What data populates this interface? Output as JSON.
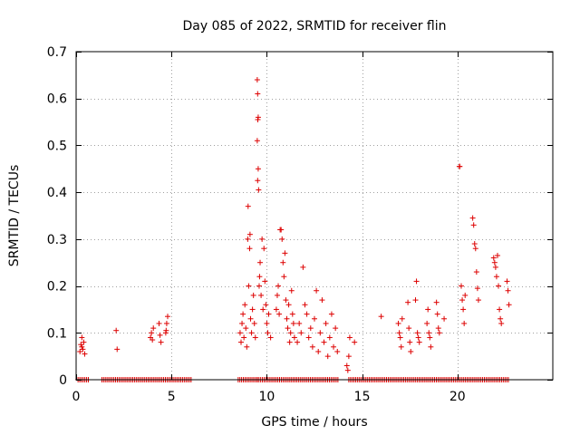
{
  "chart_data": {
    "type": "scatter",
    "title": "Day 085 of 2022, SRMTID for receiver flin",
    "xlabel": "GPS time / hours",
    "ylabel": "SRMTID / TECUs",
    "xlim": [
      0,
      25
    ],
    "ylim": [
      0,
      0.7
    ],
    "xticks": [
      0,
      5,
      10,
      15,
      20
    ],
    "yticks": [
      0,
      0.1,
      0.2,
      0.3,
      0.4,
      0.5,
      0.6,
      0.7
    ],
    "grid": true,
    "marker": "plus",
    "color": "#dd0000",
    "series": [
      {
        "name": "SRMTID",
        "points": [
          [
            0.2,
            0.06
          ],
          [
            0.25,
            0.075
          ],
          [
            0.3,
            0.09
          ],
          [
            0.35,
            0.065
          ],
          [
            0.4,
            0.08
          ],
          [
            0.45,
            0.055
          ],
          [
            0.3,
            0.07
          ],
          [
            2.1,
            0.105
          ],
          [
            2.15,
            0.065
          ],
          [
            3.9,
            0.09
          ],
          [
            3.95,
            0.1
          ],
          [
            4.0,
            0.085
          ],
          [
            4.05,
            0.11
          ],
          [
            4.35,
            0.12
          ],
          [
            4.4,
            0.095
          ],
          [
            4.45,
            0.08
          ],
          [
            4.7,
            0.1
          ],
          [
            4.75,
            0.12
          ],
          [
            4.8,
            0.135
          ],
          [
            4.72,
            0.105
          ],
          [
            8.6,
            0.1
          ],
          [
            8.65,
            0.08
          ],
          [
            8.7,
            0.12
          ],
          [
            8.75,
            0.14
          ],
          [
            8.8,
            0.09
          ],
          [
            8.85,
            0.16
          ],
          [
            8.9,
            0.11
          ],
          [
            8.95,
            0.07
          ],
          [
            9.0,
            0.3
          ],
          [
            9.02,
            0.37
          ],
          [
            9.05,
            0.2
          ],
          [
            9.1,
            0.28
          ],
          [
            9.12,
            0.31
          ],
          [
            9.15,
            0.13
          ],
          [
            9.2,
            0.1
          ],
          [
            9.25,
            0.15
          ],
          [
            9.3,
            0.18
          ],
          [
            9.35,
            0.12
          ],
          [
            9.4,
            0.09
          ],
          [
            9.5,
            0.64
          ],
          [
            9.52,
            0.61
          ],
          [
            9.55,
            0.56
          ],
          [
            9.53,
            0.555
          ],
          [
            9.5,
            0.51
          ],
          [
            9.55,
            0.45
          ],
          [
            9.52,
            0.425
          ],
          [
            9.57,
            0.405
          ],
          [
            9.6,
            0.2
          ],
          [
            9.62,
            0.22
          ],
          [
            9.65,
            0.25
          ],
          [
            9.7,
            0.18
          ],
          [
            9.75,
            0.3
          ],
          [
            9.8,
            0.15
          ],
          [
            9.85,
            0.28
          ],
          [
            9.9,
            0.21
          ],
          [
            9.95,
            0.16
          ],
          [
            10.0,
            0.12
          ],
          [
            10.05,
            0.1
          ],
          [
            10.1,
            0.14
          ],
          [
            10.2,
            0.09
          ],
          [
            10.5,
            0.15
          ],
          [
            10.55,
            0.18
          ],
          [
            10.6,
            0.2
          ],
          [
            10.65,
            0.14
          ],
          [
            10.7,
            0.32
          ],
          [
            10.75,
            0.32
          ],
          [
            10.8,
            0.3
          ],
          [
            10.85,
            0.25
          ],
          [
            10.9,
            0.22
          ],
          [
            10.95,
            0.27
          ],
          [
            11.0,
            0.17
          ],
          [
            11.05,
            0.13
          ],
          [
            11.1,
            0.11
          ],
          [
            11.15,
            0.16
          ],
          [
            11.2,
            0.08
          ],
          [
            11.25,
            0.1
          ],
          [
            11.3,
            0.19
          ],
          [
            11.35,
            0.14
          ],
          [
            11.4,
            0.12
          ],
          [
            11.45,
            0.09
          ],
          [
            11.6,
            0.08
          ],
          [
            11.7,
            0.12
          ],
          [
            11.8,
            0.1
          ],
          [
            11.9,
            0.24
          ],
          [
            12.0,
            0.16
          ],
          [
            12.1,
            0.14
          ],
          [
            12.2,
            0.09
          ],
          [
            12.3,
            0.11
          ],
          [
            12.4,
            0.07
          ],
          [
            12.5,
            0.13
          ],
          [
            12.6,
            0.19
          ],
          [
            12.7,
            0.06
          ],
          [
            12.8,
            0.1
          ],
          [
            12.9,
            0.17
          ],
          [
            13.0,
            0.08
          ],
          [
            13.1,
            0.12
          ],
          [
            13.2,
            0.05
          ],
          [
            13.3,
            0.09
          ],
          [
            13.4,
            0.14
          ],
          [
            13.5,
            0.07
          ],
          [
            13.6,
            0.11
          ],
          [
            13.7,
            0.06
          ],
          [
            14.2,
            0.03
          ],
          [
            14.25,
            0.02
          ],
          [
            14.3,
            0.05
          ],
          [
            14.35,
            0.09
          ],
          [
            14.6,
            0.08
          ],
          [
            16.0,
            0.135
          ],
          [
            16.9,
            0.12
          ],
          [
            16.95,
            0.1
          ],
          [
            17.0,
            0.09
          ],
          [
            17.05,
            0.07
          ],
          [
            17.1,
            0.13
          ],
          [
            17.4,
            0.165
          ],
          [
            17.45,
            0.11
          ],
          [
            17.5,
            0.08
          ],
          [
            17.55,
            0.06
          ],
          [
            17.8,
            0.17
          ],
          [
            17.85,
            0.21
          ],
          [
            17.9,
            0.1
          ],
          [
            17.95,
            0.09
          ],
          [
            18.0,
            0.08
          ],
          [
            18.4,
            0.12
          ],
          [
            18.45,
            0.15
          ],
          [
            18.5,
            0.1
          ],
          [
            18.55,
            0.09
          ],
          [
            18.6,
            0.07
          ],
          [
            18.9,
            0.165
          ],
          [
            18.95,
            0.14
          ],
          [
            19.0,
            0.11
          ],
          [
            19.05,
            0.1
          ],
          [
            19.3,
            0.13
          ],
          [
            20.1,
            0.455
          ],
          [
            20.12,
            0.455
          ],
          [
            20.2,
            0.2
          ],
          [
            20.25,
            0.17
          ],
          [
            20.3,
            0.15
          ],
          [
            20.35,
            0.12
          ],
          [
            20.4,
            0.18
          ],
          [
            20.8,
            0.345
          ],
          [
            20.85,
            0.33
          ],
          [
            20.9,
            0.29
          ],
          [
            20.95,
            0.28
          ],
          [
            21.0,
            0.23
          ],
          [
            21.05,
            0.195
          ],
          [
            21.1,
            0.17
          ],
          [
            21.9,
            0.26
          ],
          [
            21.95,
            0.25
          ],
          [
            22.0,
            0.24
          ],
          [
            22.05,
            0.22
          ],
          [
            22.1,
            0.265
          ],
          [
            22.15,
            0.2
          ],
          [
            22.2,
            0.15
          ],
          [
            22.25,
            0.13
          ],
          [
            22.3,
            0.12
          ],
          [
            22.6,
            0.21
          ],
          [
            22.65,
            0.19
          ],
          [
            22.7,
            0.16
          ]
        ],
        "zero_ranges": [
          [
            0.1,
            0.65
          ],
          [
            1.35,
            6.1
          ],
          [
            8.5,
            9.5
          ],
          [
            9.5,
            13.8
          ],
          [
            14.3,
            22.7
          ]
        ]
      }
    ]
  }
}
